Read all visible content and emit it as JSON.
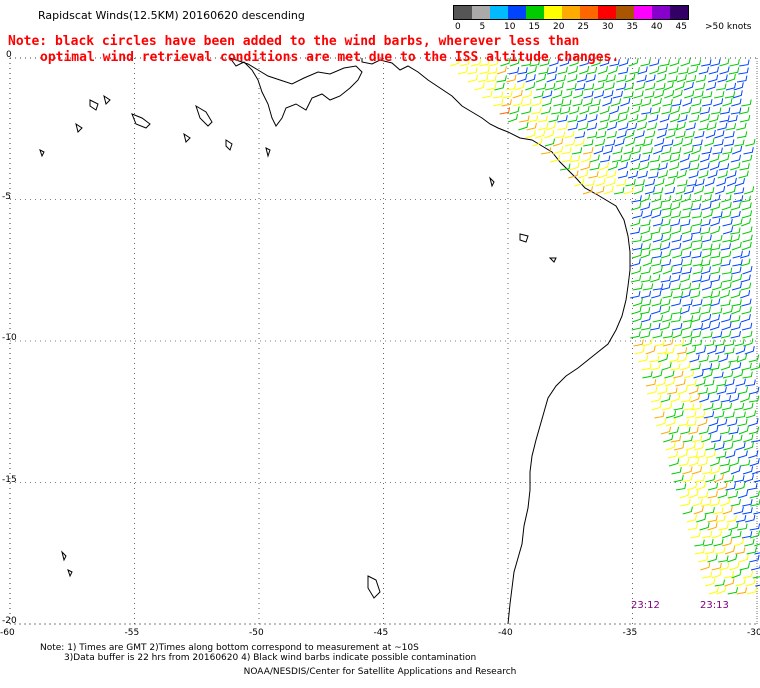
{
  "header": {
    "title": "Rapidscat Winds(12.5KM) 20160620 descending",
    "note_line1": "Note: black circles have been added to the wind barbs, wherever less than",
    "note_line2": "optimal wind retrieval conditions are met due to the ISS altitude changes."
  },
  "legend": {
    "labels": [
      "0",
      "5",
      "10",
      "15",
      "20",
      "25",
      "30",
      "35",
      "40",
      "45",
      ">50 knots"
    ],
    "colors": [
      "#555555",
      "#aaaaaa",
      "#00bbff",
      "#0044ff",
      "#00cc00",
      "#ffff00",
      "#ffaa00",
      "#ff6600",
      "#ff0000",
      "#aa5500",
      "#ff00ff",
      "#8800cc",
      "#330066"
    ]
  },
  "axes": {
    "lat_labels": [
      "0",
      "-5",
      "-10",
      "-15",
      "-20"
    ],
    "lon_labels": [
      "-60",
      "-55",
      "-50",
      "-45",
      "-40",
      "-35",
      "-30"
    ],
    "lat_values": [
      0,
      -5,
      -10,
      -15,
      -20
    ],
    "lon_values": [
      -60,
      -55,
      -50,
      -45,
      -40,
      -35,
      -30
    ]
  },
  "time_labels": [
    "23:12",
    "23:13"
  ],
  "footnotes": {
    "line1": "Note: 1) Times are GMT 2)Times along bottom correspond to measurement at ~10S",
    "line2": "3)Data buffer is 22 hrs from 20160620 4) Black wind barbs indicate possible contamination",
    "credit": "NOAA/NESDIS/Center for Satellite Applications and Research"
  }
}
